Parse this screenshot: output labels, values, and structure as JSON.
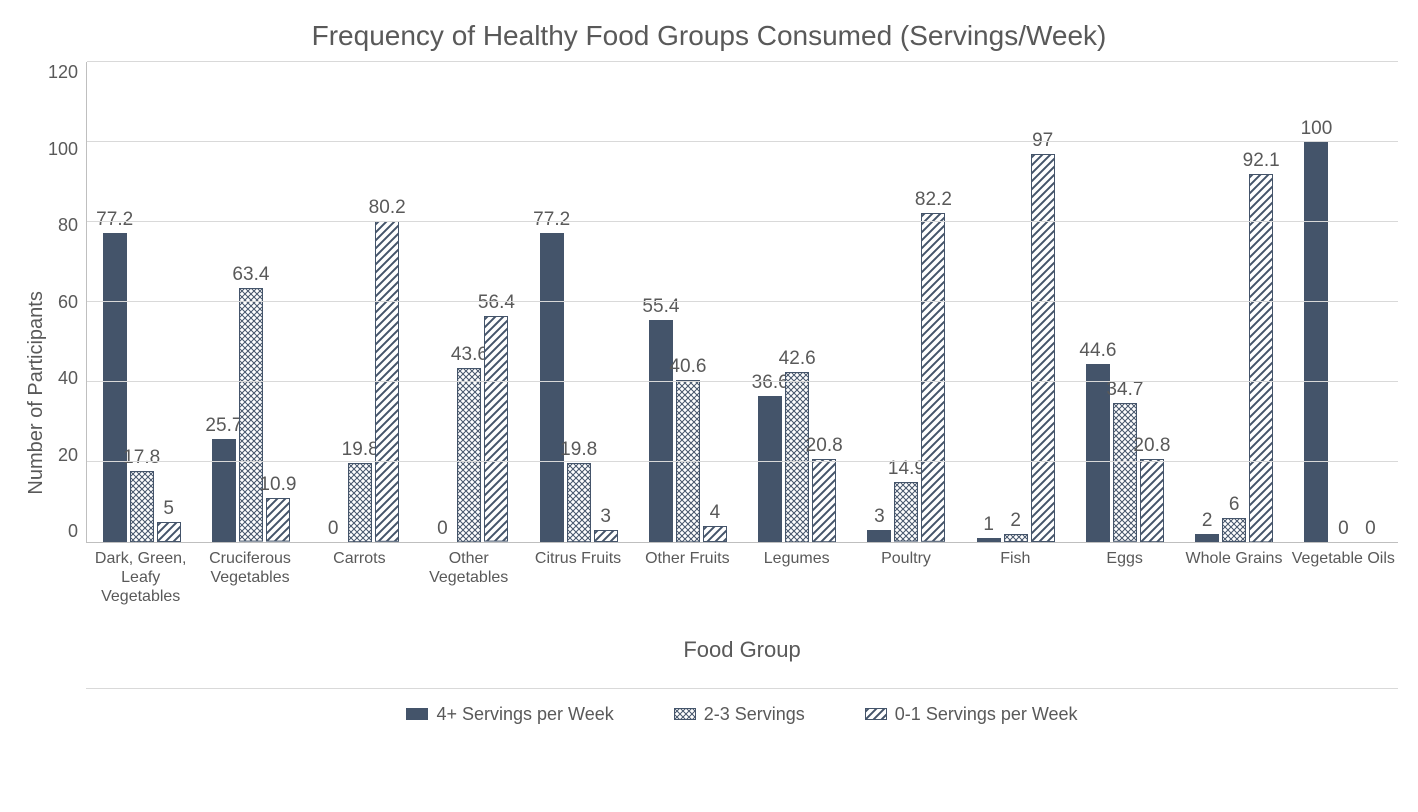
{
  "chart": {
    "type": "bar",
    "title": "Frequency of Healthy Food Groups Consumed (Servings/Week)",
    "title_fontsize": 28,
    "ylabel": "Number of Participants",
    "xlabel": "Food Group",
    "ylim": [
      0,
      120
    ],
    "ytick_step": 20,
    "yticks": [
      120,
      100,
      80,
      60,
      40,
      20,
      0
    ],
    "background_color": "#ffffff",
    "gridline_color": "#d9d9d9",
    "axis_color": "#bfbfbf",
    "text_color": "#595959",
    "series": [
      {
        "name": "4+ Servings per Week",
        "fill": "solid",
        "color": "#44546a"
      },
      {
        "name": "2-3 Servings",
        "fill": "cross",
        "color": "#44546a"
      },
      {
        "name": "0-1 Servings per Week",
        "fill": "diag",
        "color": "#44546a"
      }
    ],
    "categories": [
      {
        "label": "Dark, Green, Leafy Vegetables",
        "values": [
          77.2,
          17.8,
          5
        ]
      },
      {
        "label": "Cruciferous Vegetables",
        "values": [
          25.7,
          63.4,
          10.9
        ]
      },
      {
        "label": "Carrots",
        "values": [
          0,
          19.8,
          80.2
        ]
      },
      {
        "label": "Other Vegetables",
        "values": [
          0,
          43.6,
          56.4
        ]
      },
      {
        "label": "Citrus Fruits",
        "values": [
          77.2,
          19.8,
          3
        ]
      },
      {
        "label": "Other Fruits",
        "values": [
          55.4,
          40.6,
          4
        ]
      },
      {
        "label": "Legumes",
        "values": [
          36.6,
          42.6,
          20.8
        ]
      },
      {
        "label": "Poultry",
        "values": [
          3,
          14.9,
          82.2
        ]
      },
      {
        "label": "Fish",
        "values": [
          1,
          2,
          97
        ]
      },
      {
        "label": "Eggs",
        "values": [
          44.6,
          34.7,
          20.8
        ]
      },
      {
        "label": "Whole Grains",
        "values": [
          2,
          6,
          92.1
        ]
      },
      {
        "label": "Vegetable Oils",
        "values": [
          100,
          0,
          0
        ]
      }
    ]
  }
}
